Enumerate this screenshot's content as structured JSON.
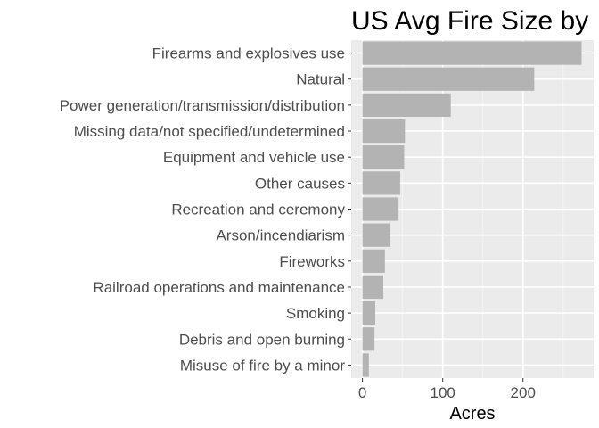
{
  "chart_data": {
    "type": "bar",
    "orientation": "horizontal",
    "title": "US Avg Fire Size by",
    "xlabel": "Acres",
    "ylabel": "",
    "categories": [
      "Firearms and explosives use",
      "Natural",
      "Power generation/transmission/distribution",
      "Missing data/not specified/undetermined",
      "Equipment and vehicle use",
      "Other causes",
      "Recreation and ceremony",
      "Arson/incendiarism",
      "Fireworks",
      "Railroad operations and maintenance",
      "Smoking",
      "Debris and open burning",
      "Misuse of fire by a minor"
    ],
    "values": [
      273,
      214,
      110,
      53,
      52,
      47,
      45,
      34,
      28,
      26,
      16,
      15,
      8
    ],
    "xlim": [
      -14,
      288
    ],
    "xticks": [
      0,
      100,
      200
    ],
    "grid": true,
    "colors": {
      "bar": "#b3b3b3",
      "panel": "#ebebeb",
      "grid_major": "#ffffff",
      "grid_minor": "#f5f5f5"
    }
  }
}
